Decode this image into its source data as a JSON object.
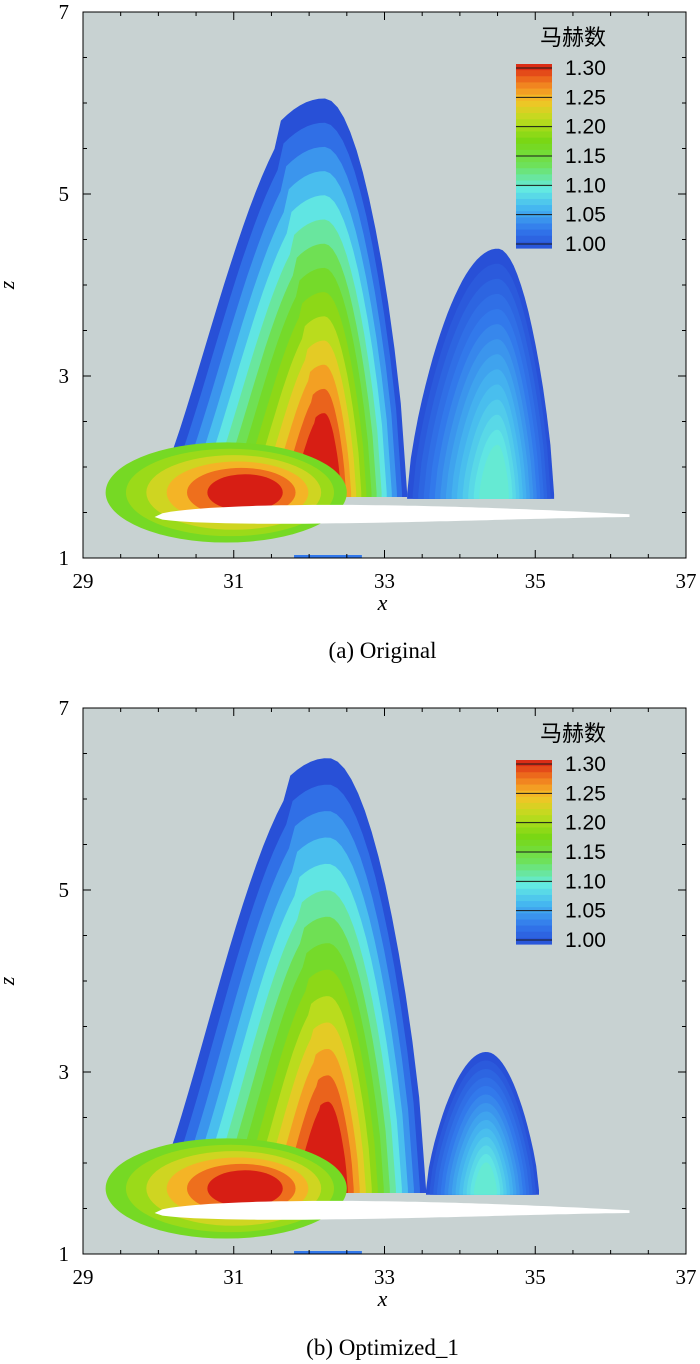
{
  "chart_data": [
    {
      "type": "heatmap",
      "caption": "(a) Original",
      "xlabel": "x",
      "ylabel": "z",
      "xlim": [
        29,
        37
      ],
      "ylim": [
        1,
        7
      ],
      "x_ticks": [
        29,
        31,
        33,
        35,
        37
      ],
      "y_ticks": [
        1,
        3,
        5,
        7
      ],
      "colorbar": {
        "title": "马赫数",
        "min": 1.0,
        "max": 1.3,
        "ticks": [
          "1.30",
          "1.25",
          "1.20",
          "1.15",
          "1.10",
          "1.05",
          "1.00"
        ]
      },
      "background_color": "#c8d2d2",
      "zones": [
        {
          "name": "front supersonic region",
          "x_range": [
            29.95,
            33.3
          ],
          "z_peak": 6.05,
          "peak_x": 32.2,
          "max_mach": 1.3
        },
        {
          "name": "rear supersonic region",
          "x_range": [
            33.3,
            35.25
          ],
          "z_peak": 4.4,
          "peak_x": 34.5,
          "max_mach": 1.1
        }
      ]
    },
    {
      "type": "heatmap",
      "caption": "(b) Optimized_1",
      "xlabel": "x",
      "ylabel": "z",
      "xlim": [
        29,
        37
      ],
      "ylim": [
        1,
        7
      ],
      "x_ticks": [
        29,
        31,
        33,
        35,
        37
      ],
      "y_ticks": [
        1,
        3,
        5,
        7
      ],
      "colorbar": {
        "title": "马赫数",
        "min": 1.0,
        "max": 1.3,
        "ticks": [
          "1.30",
          "1.25",
          "1.20",
          "1.15",
          "1.10",
          "1.05",
          "1.00"
        ]
      },
      "background_color": "#c8d2d2",
      "zones": [
        {
          "name": "front supersonic region",
          "x_range": [
            29.95,
            33.55
          ],
          "z_peak": 6.45,
          "peak_x": 32.25,
          "max_mach": 1.3
        },
        {
          "name": "rear supersonic region",
          "x_range": [
            33.55,
            35.05
          ],
          "z_peak": 3.22,
          "peak_x": 34.35,
          "max_mach": 1.1
        }
      ]
    }
  ]
}
